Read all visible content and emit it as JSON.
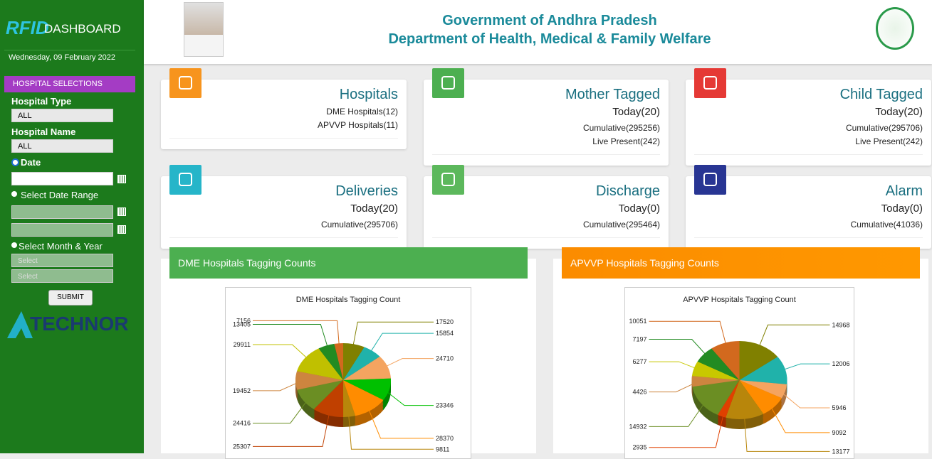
{
  "sidebar": {
    "logo": "RFID",
    "app_title": "DASHBOARD",
    "date": "Wednesday, 09 February 2022",
    "section": "HOSPITAL SELECTIONS",
    "hospital_type_label": "Hospital Type",
    "hospital_type": "ALL",
    "hospital_name_label": "Hospital Name",
    "hospital_name": "ALL",
    "date_option": "Date",
    "range_option": "Select Date Range",
    "month_option": "Select Month & Year",
    "month_placeholder": "Select",
    "year_placeholder": "Select",
    "submit": "SUBMIT",
    "brand": "TECHNOR"
  },
  "header": {
    "line1": "Government of Andhra Pradesh",
    "line2": "Department of Health, Medical & Family Welfare"
  },
  "cards": [
    {
      "title": "Hospitals",
      "lines": [
        "DME Hospitals(12)",
        "APVVP Hospitals(11)"
      ]
    },
    {
      "title": "Mother Tagged",
      "lines": [
        "Today(20)",
        "Cumulative(295256)",
        "Live Present(242)"
      ]
    },
    {
      "title": "Child Tagged",
      "lines": [
        "Today(20)",
        "Cumulative(295706)",
        "Live Present(242)"
      ]
    },
    {
      "title": "Deliveries",
      "lines": [
        "Today(20)",
        "Cumulative(295706)"
      ]
    },
    {
      "title": "Discharge",
      "lines": [
        "Today(0)",
        "Cumulative(295464)"
      ]
    },
    {
      "title": "Alarm",
      "lines": [
        "Today(0)",
        "Cumulative(41036)"
      ]
    }
  ],
  "panels": [
    {
      "header": "DME Hospitals Tagging Counts",
      "chart": {
        "type": "pie",
        "title": "DME Hospitals Tagging Count",
        "values": [
          17520,
          15854,
          24710,
          23346,
          28370,
          9811,
          25307,
          24416,
          19452,
          29911,
          13405,
          7156
        ],
        "colors": [
          "#808000",
          "#20b2aa",
          "#f4a460",
          "#00c000",
          "#ff8c00",
          "#b8860b",
          "#c04000",
          "#6b8e23",
          "#cd853f",
          "#c0c000",
          "#228b22",
          "#d2691e"
        ]
      }
    },
    {
      "header": "APVVP Hospitals Tagging Counts",
      "chart": {
        "type": "pie",
        "title": "APVVP Hospitals Tagging Count",
        "values": [
          14968,
          12006,
          5946,
          9092,
          13177,
          2935,
          14932,
          4426,
          6277,
          7197,
          10051
        ],
        "colors": [
          "#808000",
          "#20b2aa",
          "#f4a460",
          "#ff8c00",
          "#b8860b",
          "#e04000",
          "#6b8e23",
          "#cd853f",
          "#c8c800",
          "#228b22",
          "#d2691e"
        ]
      }
    }
  ]
}
